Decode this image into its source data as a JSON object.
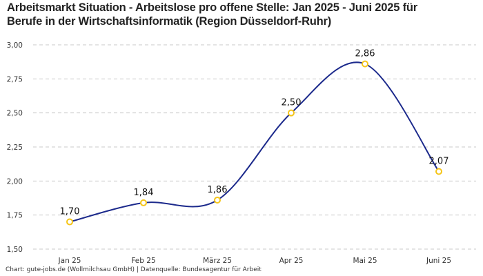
{
  "title_lines": [
    "Arbeitsmarkt Situation - Arbeitslose pro offene Stelle: Jan 2025 - Juni 2025 für",
    "Berufe in der Wirtschaftsinformatik (Region Düsseldorf-Ruhr)"
  ],
  "source": "Chart: gute-jobs.de (Wollmilchsau GmbH) | Datenquelle: Bundesagentur für Arbeit",
  "colors": {
    "line": "#1c2a8c",
    "marker": "#f5c518",
    "grid": "#c8c8c8"
  },
  "chart_data": {
    "type": "line",
    "title": "Arbeitsmarkt Situation - Arbeitslose pro offene Stelle: Jan 2025 - Juni 2025 für Berufe in der Wirtschaftsinformatik (Region Düsseldorf-Ruhr)",
    "xlabel": "",
    "ylabel": "",
    "categories": [
      "Jan 25",
      "Feb 25",
      "März 25",
      "Apr 25",
      "Mai 25",
      "Juni 25"
    ],
    "series": [
      {
        "name": "Arbeitslose pro offene Stelle",
        "values": [
          1.7,
          1.84,
          1.86,
          2.5,
          2.86,
          2.07
        ]
      }
    ],
    "data_labels": [
      "1,70",
      "1,84",
      "1,86",
      "2,50",
      "2,86",
      "2,07"
    ],
    "ylim": [
      1.5,
      3.0
    ],
    "yticks": [
      1.5,
      1.75,
      2.0,
      2.25,
      2.5,
      2.75,
      3.0
    ],
    "ytick_labels": [
      "1,50",
      "1,75",
      "2,00",
      "2,25",
      "2,50",
      "2,75",
      "3,00"
    ],
    "grid": true,
    "grid_style": "dashed-horizontal",
    "smooth": true,
    "legend": "none"
  }
}
